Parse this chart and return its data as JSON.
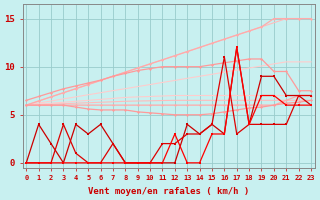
{
  "bg_color": "#c8f0f0",
  "grid_color": "#99cccc",
  "x_labels": [
    "0",
    "1",
    "2",
    "3",
    "4",
    "5",
    "6",
    "7",
    "8",
    "9",
    "10",
    "11",
    "12",
    "13",
    "14",
    "15",
    "16",
    "17",
    "18",
    "19",
    "20",
    "21",
    "22",
    "23"
  ],
  "xlabel": "Vent moyen/en rafales ( km/h )",
  "ylabel_ticks": [
    0,
    5,
    10,
    15
  ],
  "ylim": [
    -0.5,
    16.5
  ],
  "xlim": [
    -0.3,
    23.3
  ],
  "upper_diag1": [
    6,
    6.43,
    6.86,
    7.29,
    7.71,
    8.14,
    8.57,
    9.0,
    9.43,
    9.86,
    10.29,
    10.71,
    11.14,
    11.57,
    12.0,
    12.43,
    12.86,
    13.29,
    13.71,
    14.14,
    14.57,
    15.0,
    15.0,
    15.0
  ],
  "upper_diag2": [
    6,
    6.22,
    6.43,
    6.65,
    6.86,
    7.08,
    7.29,
    7.51,
    7.71,
    7.93,
    8.14,
    8.36,
    8.57,
    8.79,
    9.0,
    9.21,
    9.43,
    9.64,
    9.86,
    10.07,
    10.29,
    10.5,
    10.5,
    10.5
  ],
  "lower_diag1": [
    6,
    6.1,
    6.2,
    6.3,
    6.4,
    6.5,
    6.6,
    6.7,
    6.8,
    6.86,
    6.9,
    6.95,
    7.0,
    7.0,
    7.0,
    7.0,
    7.0,
    7.0,
    7.0,
    7.0,
    7.0,
    7.0,
    7.0,
    7.0
  ],
  "lower_diag2": [
    6,
    6.05,
    6.1,
    6.15,
    6.2,
    6.25,
    6.3,
    6.35,
    6.4,
    6.43,
    6.45,
    6.48,
    6.5,
    6.5,
    6.5,
    6.5,
    6.5,
    6.5,
    6.5,
    6.5,
    6.5,
    6.5,
    6.5,
    6.5
  ],
  "pink_upper": {
    "y": [
      6,
      6.43,
      6.86,
      7.29,
      7.71,
      8.14,
      8.57,
      9.0,
      9.43,
      9.86,
      10.29,
      10.71,
      11.14,
      11.57,
      12.0,
      12.43,
      12.86,
      13.29,
      13.71,
      14.14,
      15.0,
      15.0,
      15.0,
      15.0
    ],
    "color": "#ffaaaa",
    "lw": 0.9
  },
  "pink_lower": {
    "y": [
      6,
      6,
      6,
      6,
      6,
      6,
      6,
      6,
      6,
      6,
      6,
      6,
      6,
      6,
      6,
      6,
      6,
      6,
      6,
      6,
      6,
      6.5,
      7,
      7
    ],
    "color": "#ffaaaa",
    "lw": 0.9
  },
  "pink_mid_upper": {
    "y": [
      6.5,
      6.9,
      7.3,
      7.7,
      8.0,
      8.3,
      8.6,
      9.0,
      9.3,
      9.6,
      9.8,
      10.0,
      10.0,
      10.0,
      10.0,
      10.2,
      10.4,
      10.6,
      10.8,
      10.8,
      9.5,
      9.5,
      7.5,
      7.5
    ],
    "color": "#ff9999",
    "lw": 0.9
  },
  "pink_mid_lower": {
    "y": [
      6,
      6,
      6,
      6,
      5.8,
      5.6,
      5.5,
      5.5,
      5.5,
      5.3,
      5.2,
      5.1,
      5.0,
      5.0,
      5.0,
      5.1,
      5.3,
      5.5,
      5.7,
      5.8,
      6.0,
      6.2,
      6.3,
      6.5
    ],
    "color": "#ff9999",
    "lw": 0.9
  },
  "line_red1": {
    "y": [
      0,
      4,
      2,
      0,
      4,
      3,
      4,
      2,
      0,
      0,
      0,
      0,
      0,
      4,
      3,
      4,
      3,
      12,
      4,
      9,
      9,
      7,
      7,
      6
    ],
    "color": "#cc0000",
    "lw": 0.9,
    "ms": 2.0
  },
  "line_red2": {
    "y": [
      0,
      0,
      0,
      4,
      1,
      0,
      0,
      2,
      0,
      0,
      0,
      2,
      2,
      3,
      3,
      4,
      11,
      3,
      4,
      4,
      4,
      4,
      7,
      7
    ],
    "color": "#dd0000",
    "lw": 0.9,
    "ms": 2.0
  },
  "line_red3": {
    "y": [
      0,
      0,
      0,
      0,
      0,
      0,
      0,
      0,
      0,
      0,
      0,
      0,
      3,
      0,
      0,
      3,
      3,
      12,
      4,
      7,
      7,
      6,
      6,
      6
    ],
    "color": "#ff0000",
    "lw": 0.9,
    "ms": 2.0
  },
  "tick_color": "#cc0000",
  "axis_color": "#888888",
  "xlabel_fontsize": 6.5,
  "ytick_fontsize": 6.5,
  "xtick_fontsize": 5.0
}
